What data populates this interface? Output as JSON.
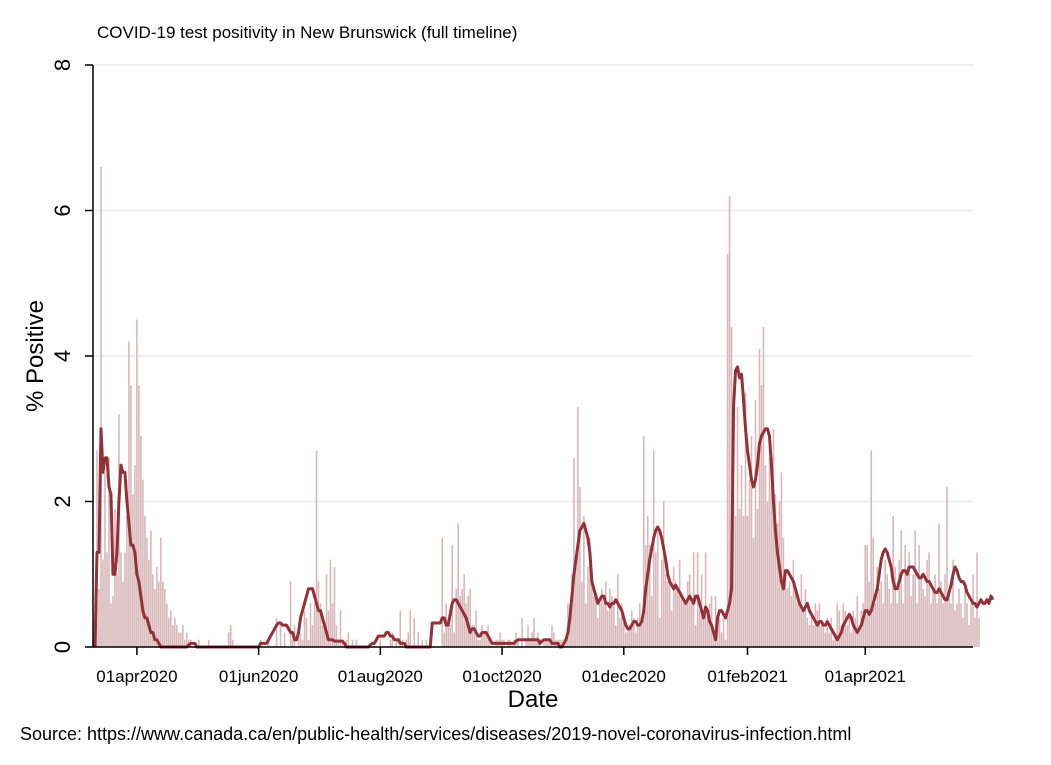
{
  "chart_data": {
    "type": "bar+line",
    "title": "COVID-19 test positivity in New Brunswick (full timeline)",
    "xlabel": "Date",
    "ylabel": "% Positive",
    "ylim": [
      0,
      8
    ],
    "yticks": [
      0,
      2,
      4,
      6,
      8
    ],
    "xlim": [
      "2020-03-10",
      "2021-05-25"
    ],
    "xticks": [
      {
        "date": "2020-04-01",
        "label": "01apr2020"
      },
      {
        "date": "2020-06-01",
        "label": "01jun2020"
      },
      {
        "date": "2020-08-01",
        "label": "01aug2020"
      },
      {
        "date": "2020-10-01",
        "label": "01oct2020"
      },
      {
        "date": "2020-12-01",
        "label": "01dec2020"
      },
      {
        "date": "2021-02-01",
        "label": "01feb2021"
      },
      {
        "date": "2021-04-01",
        "label": "01apr2021"
      }
    ],
    "grid": true,
    "colors": {
      "bars": "#d8b8ba",
      "line": "#943138",
      "grid": "#e6ecef",
      "axis": "#000000"
    },
    "series": [
      {
        "type": "bar",
        "start_date": "2020-03-12",
        "values": [
          2.7,
          0.8,
          6.6,
          1.2,
          2.4,
          1.3,
          2.6,
          0.6,
          0.7,
          1.9,
          1.0,
          3.2,
          1.3,
          0.9,
          1.3,
          1.8,
          4.2,
          3.6,
          2.1,
          2.5,
          4.5,
          3.6,
          2.9,
          2.3,
          1.8,
          1.5,
          1.2,
          1.6,
          1.0,
          0.8,
          1.1,
          0.9,
          1.5,
          0.9,
          0.8,
          0.6,
          0.4,
          0.5,
          0.3,
          0.4,
          0.3,
          0.2,
          0.2,
          0.3,
          0.1,
          0.2,
          0.1,
          0.1,
          0,
          0,
          0,
          0.1,
          0,
          0,
          0,
          0,
          0.1,
          0,
          0,
          0,
          0,
          0,
          0,
          0,
          0,
          0,
          0.2,
          0.3,
          0.1,
          0,
          0,
          0,
          0,
          0,
          0,
          0,
          0,
          0,
          0,
          0,
          0,
          0,
          0.1,
          0,
          0,
          0,
          0.1,
          0,
          0,
          0,
          0.4,
          0,
          0.3,
          0,
          0.2,
          0,
          0,
          0.9,
          0.1,
          0.3,
          0,
          0.3,
          0.2,
          0.1,
          0.5,
          0.4,
          0.1,
          0.6,
          0.3,
          0.6,
          2.7,
          0.9,
          0.6,
          0.3,
          0.3,
          1.0,
          0.5,
          1.2,
          0.6,
          1.1,
          0.3,
          0.1,
          0.5,
          0.1,
          0,
          0.1,
          0.2,
          0,
          0.1,
          0,
          0.1,
          0,
          0,
          0,
          0,
          0,
          0,
          0,
          0,
          0,
          0,
          0,
          0.1,
          0,
          0,
          0,
          0,
          0.1,
          0.2,
          0,
          0.1,
          0,
          0.5,
          0.1,
          0,
          0.1,
          0.2,
          0.5,
          0,
          0.4,
          0,
          0.2,
          0,
          0.1,
          0,
          0.1,
          0,
          0,
          0,
          0,
          0,
          0,
          0,
          1.5,
          0.2,
          0.6,
          0.4,
          0.3,
          1.4,
          0.2,
          0.8,
          1.7,
          0.7,
          0.8,
          1.0,
          0.6,
          0.7,
          0.8,
          0.3,
          0.3,
          0.5,
          0.1,
          0.1,
          0.3,
          0.2,
          0.2,
          0.3,
          0.1,
          0,
          0,
          0.1,
          0.1,
          0.2,
          0.1,
          0.1,
          0,
          0.1,
          0.1,
          0,
          0.1,
          0.2,
          0.1,
          0,
          0.4,
          0,
          0.1,
          0.3,
          0.1,
          0.2,
          0.4,
          0.1,
          0.2,
          0.1,
          0,
          0.1,
          0.1,
          0.1,
          0.1,
          0.3,
          0.2,
          0.1,
          0.1,
          0.1,
          0.1,
          0,
          0.1,
          0.6,
          0.6,
          1.0,
          2.6,
          1.2,
          3.3,
          2.2,
          0.9,
          1.8,
          0.6,
          1.1,
          1.5,
          1.0,
          0.7,
          0.7,
          0.4,
          0.6,
          0.8,
          0.6,
          0.9,
          0.5,
          0.8,
          0.7,
          0.6,
          0.3,
          1.0,
          0.4,
          0.6,
          0.4,
          0.2,
          0.3,
          0.3,
          0.5,
          0.4,
          0.2,
          0.4,
          0.6,
          0.3,
          2.9,
          1.4,
          1.8,
          1.4,
          0.7,
          2.7,
          1.3,
          1.6,
          0.4,
          1.2,
          2.0,
          1.0,
          0.9,
          0.9,
          0.5,
          1.1,
          0.9,
          0.8,
          1.2,
          0.7,
          0.6,
          0.6,
          0.9,
          1.0,
          0.6,
          1.3,
          0.3,
          1.3,
          0.5,
          1.0,
          0.5,
          1.3,
          0.5,
          0.6,
          0.7,
          0.2,
          0.7,
          0.4,
          0.4,
          0.2,
          0.4,
          0.1,
          5.4,
          6.2,
          4.4,
          2.0,
          1.8,
          3.3,
          1.9,
          2.5,
          1.8,
          3.5,
          1.8,
          2.3,
          2.9,
          1.5,
          3.4,
          1.9,
          4.1,
          3.6,
          4.4,
          2.5,
          2.0,
          2.6,
          2.2,
          3.0,
          2.1,
          1.7,
          2.0,
          2.4,
          1.5,
          1.0,
          0.8,
          0.9,
          0.7,
          1.2,
          0.8,
          0.6,
          0.6,
          1.0,
          0.5,
          0.8,
          0.4,
          0.3,
          0.5,
          0.3,
          0.6,
          0.5,
          0.6,
          0.3,
          0.3,
          0.2,
          0.4,
          0.2,
          0.4,
          0.1,
          0.2,
          0.6,
          0.5,
          0.3,
          0.6,
          0.5,
          0.3,
          0.4,
          0.2,
          0.5,
          0.4,
          0.7,
          0.3,
          0.5,
          0.6,
          1.4,
          1.4,
          0.9,
          2.7,
          1.5,
          0.6,
          1.1,
          0.8,
          0.9,
          0.6,
          1.2,
          1.0,
          0.8,
          0.6,
          1.8,
          1.1,
          0.6,
          1.2,
          1.6,
          0.6,
          1.4,
          1.0,
          1.3,
          0.7,
          1.0,
          1.6,
          0.6,
          1.4,
          1.0,
          0.8,
          0.7,
          1.2,
          1.3,
          0.6,
          0.8,
          1.0,
          0.6,
          1.7,
          0.9,
          0.6,
          1.0,
          2.2,
          0.8,
          0.6,
          1.2,
          0.5,
          0.6,
          0.8,
          0.6,
          0.4,
          0.9,
          0.6,
          0.3,
          0.6,
          1.0,
          0.4,
          1.3,
          0.4
        ]
      },
      {
        "type": "line",
        "start_date": "2020-03-12",
        "values": [
          1.3,
          1.3,
          3.0,
          2.4,
          2.6,
          2.6,
          2.2,
          2.1,
          1.0,
          1.0,
          1.3,
          2.0,
          2.5,
          2.4,
          2.4,
          2.0,
          1.7,
          1.4,
          1.4,
          1.3,
          1.0,
          0.9,
          0.7,
          0.5,
          0.4,
          0.4,
          0.3,
          0.2,
          0.2,
          0.1,
          0.1,
          0.05,
          0,
          0,
          0,
          0,
          0,
          0,
          0,
          0,
          0,
          0,
          0,
          0,
          0,
          0,
          0.03,
          0.05,
          0.05,
          0.05,
          0,
          0,
          0,
          0,
          0,
          0,
          0,
          0,
          0,
          0,
          0,
          0,
          0,
          0,
          0,
          0,
          0,
          0,
          0,
          0,
          0,
          0,
          0,
          0,
          0,
          0,
          0,
          0,
          0,
          0,
          0,
          0,
          0.05,
          0.05,
          0.05,
          0.05,
          0.1,
          0.15,
          0.2,
          0.25,
          0.3,
          0.33,
          0.33,
          0.3,
          0.3,
          0.3,
          0.25,
          0.2,
          0.2,
          0.1,
          0.1,
          0.2,
          0.4,
          0.5,
          0.6,
          0.7,
          0.8,
          0.8,
          0.8,
          0.7,
          0.6,
          0.5,
          0.5,
          0.4,
          0.3,
          0.2,
          0.1,
          0.1,
          0.1,
          0.08,
          0.08,
          0.08,
          0.08,
          0.08,
          0.05,
          0,
          0,
          0,
          0,
          0,
          0,
          0,
          0,
          0,
          0,
          0,
          0,
          0.03,
          0.05,
          0.05,
          0.1,
          0.15,
          0.15,
          0.15,
          0.15,
          0.2,
          0.2,
          0.15,
          0.15,
          0.1,
          0.1,
          0.1,
          0.05,
          0.05,
          0.05,
          0,
          0,
          0,
          0,
          0,
          0,
          0,
          0,
          0,
          0,
          0,
          0,
          0,
          0.33,
          0.33,
          0.33,
          0.33,
          0.33,
          0.4,
          0.4,
          0.3,
          0.3,
          0.45,
          0.6,
          0.65,
          0.65,
          0.6,
          0.55,
          0.5,
          0.45,
          0.4,
          0.3,
          0.2,
          0.25,
          0.25,
          0.2,
          0.15,
          0.15,
          0.2,
          0.2,
          0.2,
          0.15,
          0.1,
          0.05,
          0.05,
          0.05,
          0.05,
          0.05,
          0.05,
          0.05,
          0.05,
          0.05,
          0.05,
          0.05,
          0.05,
          0.08,
          0.1,
          0.1,
          0.1,
          0.1,
          0.1,
          0.1,
          0.1,
          0.1,
          0.1,
          0.1,
          0.1,
          0.05,
          0.08,
          0.1,
          0.1,
          0.1,
          0.1,
          0.05,
          0.05,
          0.05,
          0.05,
          0,
          0,
          0.05,
          0.1,
          0.2,
          0.4,
          0.7,
          1.0,
          1.2,
          1.4,
          1.6,
          1.65,
          1.7,
          1.6,
          1.5,
          1.3,
          0.9,
          0.8,
          0.7,
          0.6,
          0.65,
          0.7,
          0.7,
          0.6,
          0.6,
          0.55,
          0.6,
          0.6,
          0.65,
          0.6,
          0.55,
          0.5,
          0.4,
          0.3,
          0.25,
          0.25,
          0.3,
          0.35,
          0.35,
          0.3,
          0.3,
          0.35,
          0.5,
          0.8,
          1.0,
          1.2,
          1.35,
          1.5,
          1.6,
          1.65,
          1.6,
          1.5,
          1.35,
          1.2,
          1.0,
          0.9,
          0.85,
          0.8,
          0.85,
          0.8,
          0.75,
          0.7,
          0.65,
          0.6,
          0.65,
          0.7,
          0.65,
          0.6,
          0.7,
          0.7,
          0.6,
          0.5,
          0.4,
          0.55,
          0.5,
          0.35,
          0.3,
          0.2,
          0.1,
          0.4,
          0.5,
          0.5,
          0.45,
          0.4,
          0.5,
          0.6,
          0.8,
          3.3,
          3.8,
          3.85,
          3.7,
          3.75,
          3.4,
          3.0,
          2.7,
          2.5,
          2.3,
          2.2,
          2.3,
          2.5,
          2.8,
          2.9,
          2.95,
          3.0,
          3.0,
          2.9,
          2.5,
          2.0,
          1.6,
          1.3,
          1.1,
          0.9,
          0.8,
          1.05,
          1.05,
          1.0,
          0.95,
          0.9,
          0.8,
          0.7,
          0.6,
          0.55,
          0.5,
          0.55,
          0.6,
          0.5,
          0.45,
          0.4,
          0.35,
          0.3,
          0.35,
          0.35,
          0.3,
          0.3,
          0.35,
          0.3,
          0.25,
          0.2,
          0.15,
          0.1,
          0.15,
          0.2,
          0.3,
          0.35,
          0.4,
          0.45,
          0.4,
          0.3,
          0.25,
          0.2,
          0.25,
          0.3,
          0.4,
          0.5,
          0.5,
          0.45,
          0.5,
          0.6,
          0.7,
          0.8,
          1.0,
          1.2,
          1.3,
          1.35,
          1.3,
          1.2,
          1.1,
          0.9,
          0.8,
          0.8,
          0.9,
          1.0,
          1.05,
          1.05,
          1.0,
          1.1,
          1.1,
          1.1,
          1.05,
          1.0,
          0.95,
          0.95,
          1.0,
          0.95,
          0.9,
          0.9,
          0.85,
          0.8,
          0.75,
          0.75,
          0.8,
          0.75,
          0.7,
          0.65,
          0.65,
          0.75,
          0.85,
          1.0,
          1.1,
          1.05,
          0.95,
          0.9,
          0.9,
          0.85,
          0.75,
          0.7,
          0.65,
          0.6,
          0.6,
          0.55,
          0.6,
          0.65,
          0.6,
          0.6,
          0.65,
          0.6,
          0.7,
          0.65
        ]
      }
    ]
  },
  "source": "Source: https://www.canada.ca/en/public-health/services/diseases/2019-novel-coronavirus-infection.html"
}
